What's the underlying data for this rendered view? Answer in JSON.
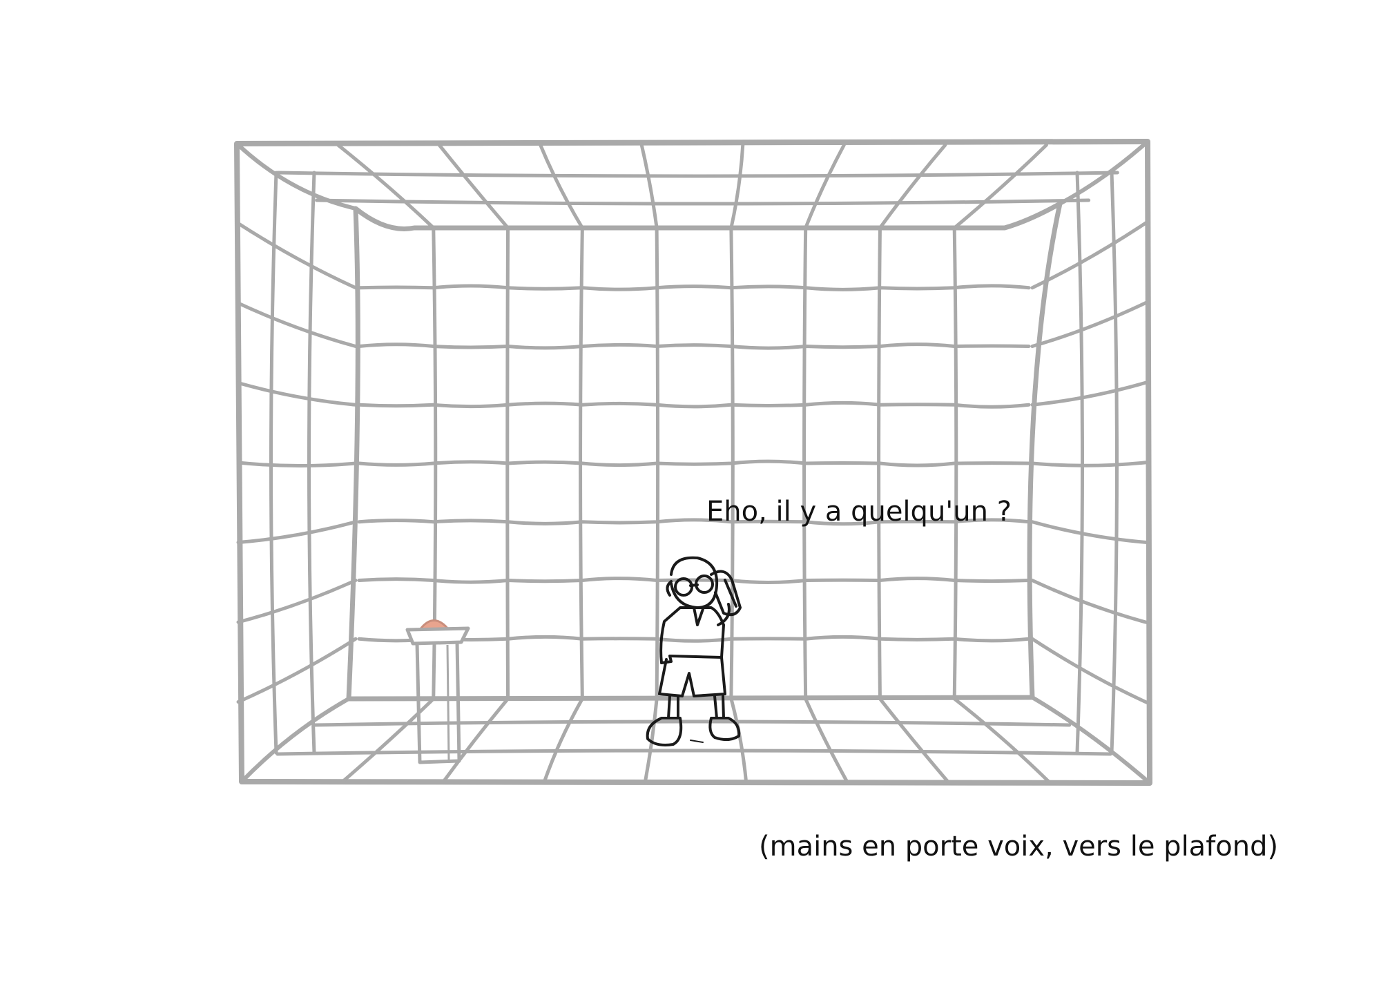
{
  "scene": {
    "dialogue": "Eho, il y a quelqu'un ?",
    "caption": "(mains en porte voix, vers le plafond)"
  },
  "colors": {
    "background": "#ffffff",
    "padding_lines": "#a9a9a9",
    "character_ink": "#1a1a1a",
    "button_top": "#e8a48e"
  },
  "icons": {
    "room": "padded-cell-drawing",
    "character": "character-sketch",
    "pedestal": "pedestal-with-button"
  }
}
